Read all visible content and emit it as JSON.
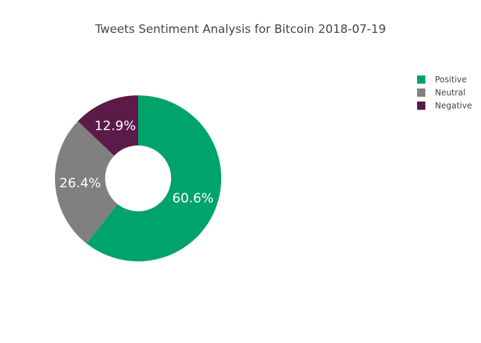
{
  "chart_data": {
    "type": "pie",
    "hole": true,
    "title": "Tweets Sentiment Analysis for Bitcoin 2018-07-19",
    "categories": [
      "Positive",
      "Neutral",
      "Negative"
    ],
    "values": [
      60.6,
      26.4,
      12.9
    ],
    "labels": [
      "60.6%",
      "26.4%",
      "12.9%"
    ],
    "colors": [
      "#00a36a",
      "#808080",
      "#5b1a48"
    ],
    "legend_position": "top-right"
  }
}
